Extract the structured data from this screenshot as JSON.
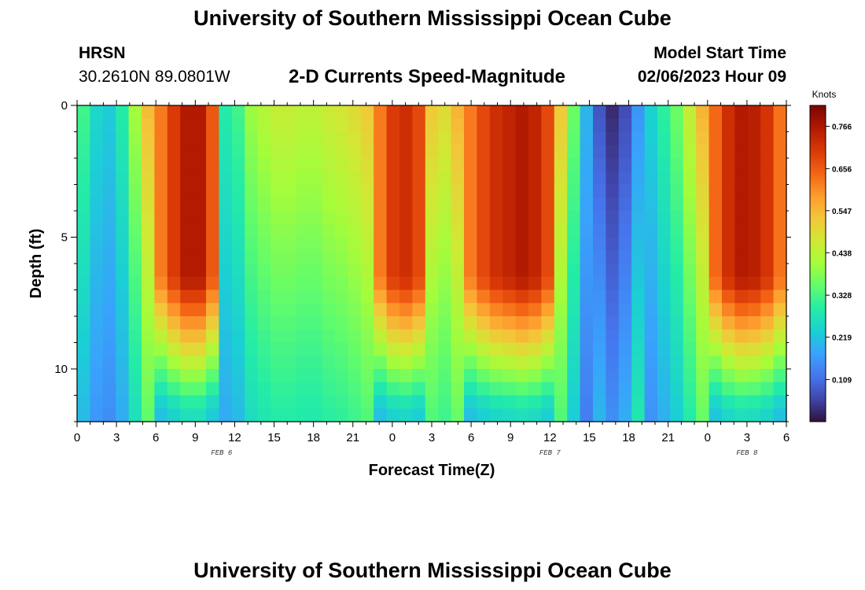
{
  "header": {
    "title": "University of Southern Mississippi Ocean Cube",
    "station": "HRSN",
    "coords": "30.2610N  89.0801W",
    "chart_title": "2-D Currents Speed-Magnitude",
    "start_label": "Model Start Time",
    "start_value": "02/06/2023 Hour 09"
  },
  "footer": {
    "title": "University of Southern Mississippi Ocean Cube"
  },
  "chart_data": {
    "type": "heatmap",
    "title": "2-D Currents Speed-Magnitude",
    "xlabel": "Forecast Time(Z)",
    "ylabel": "Depth (ft)",
    "x_ticks": [
      "0",
      "3",
      "6",
      "9",
      "12",
      "15",
      "18",
      "21",
      "0",
      "3",
      "6",
      "9",
      "12",
      "15",
      "18",
      "21",
      "0",
      "3",
      "6"
    ],
    "x_range_hours": [
      0,
      54
    ],
    "date_labels": [
      {
        "text": "FEB 6",
        "hour": 11
      },
      {
        "text": "FEB 7",
        "hour": 36
      },
      {
        "text": "FEB 8",
        "hour": 51
      }
    ],
    "y_ticks": [
      0,
      5,
      10
    ],
    "y_range_ft": [
      0,
      12
    ],
    "colorbar": {
      "unit": "Knots",
      "min": 0.0,
      "max": 0.82,
      "ticks": [
        0.766,
        0.656,
        0.547,
        0.438,
        0.328,
        0.219,
        0.109
      ],
      "colors": [
        "#30123b",
        "#4145ab",
        "#4675ed",
        "#39a2fc",
        "#1bcfd4",
        "#24eca6",
        "#61fc6c",
        "#a4fc3b",
        "#d1e834",
        "#f3c63a",
        "#fe9b2d",
        "#f36315",
        "#d93806",
        "#b11901",
        "#7a0403"
      ]
    },
    "series_columns_hours": [
      0,
      1,
      2,
      3,
      4,
      5,
      6,
      7,
      8,
      9,
      10,
      11,
      12,
      13,
      14,
      15,
      16,
      17,
      18,
      19,
      20,
      21,
      22,
      23,
      24,
      25,
      26,
      27,
      28,
      29,
      30,
      31,
      32,
      33,
      34,
      35,
      36,
      37,
      38,
      39,
      40,
      41,
      42,
      43,
      44,
      45,
      46,
      47,
      48,
      49,
      50,
      51,
      52,
      53,
      54
    ],
    "surface_speed_knots": [
      0.32,
      0.25,
      0.23,
      0.29,
      0.41,
      0.54,
      0.62,
      0.7,
      0.76,
      0.76,
      0.66,
      0.29,
      0.32,
      0.4,
      0.43,
      0.45,
      0.45,
      0.44,
      0.44,
      0.46,
      0.47,
      0.49,
      0.52,
      0.62,
      0.7,
      0.72,
      0.68,
      0.52,
      0.49,
      0.55,
      0.62,
      0.68,
      0.72,
      0.74,
      0.76,
      0.74,
      0.68,
      0.52,
      0.36,
      0.2,
      0.08,
      0.03,
      0.07,
      0.16,
      0.24,
      0.3,
      0.36,
      0.45,
      0.55,
      0.64,
      0.72,
      0.76,
      0.75,
      0.71,
      0.63
    ],
    "depth_profile_note": "Speed decreases toward the bottom; bottom rows approach 0.18-0.30 knots."
  }
}
